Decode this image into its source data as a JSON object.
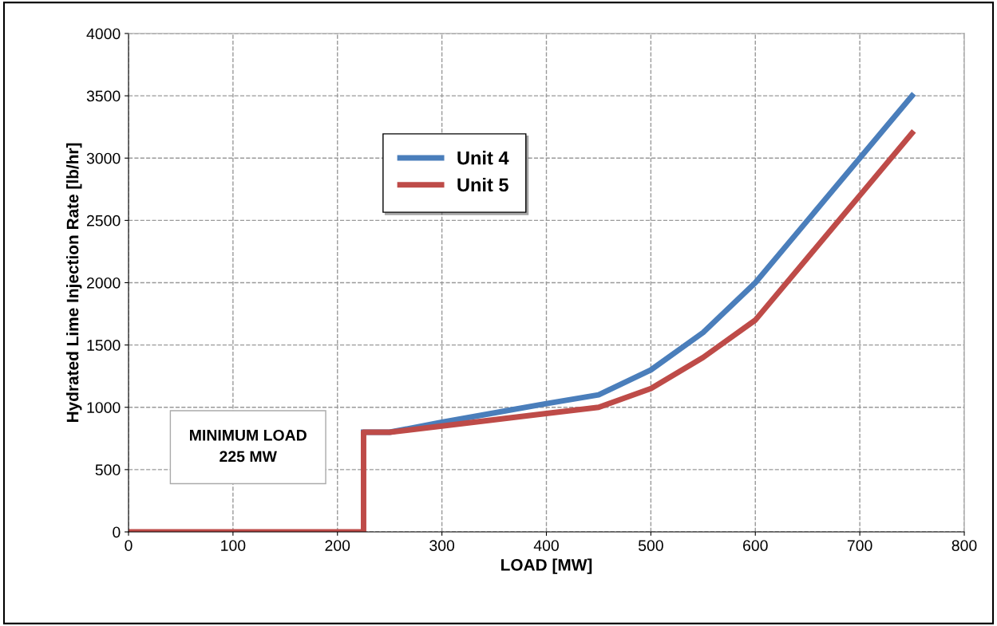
{
  "chart_data": {
    "type": "line",
    "xlabel": "LOAD [MW]",
    "ylabel": "Hydrated Lime Injection Rate [lb/hr]",
    "xlim": [
      0,
      800
    ],
    "xticks": [
      0,
      100,
      200,
      300,
      400,
      500,
      600,
      700,
      800
    ],
    "ylim": [
      0,
      4000
    ],
    "yticks": [
      0,
      500,
      1000,
      1500,
      2000,
      2500,
      3000,
      3500,
      4000
    ],
    "grid": true,
    "legend": "top",
    "marker": "none",
    "line_style": "solid",
    "annotations": [
      "MINIMUM LOAD\n225 MW"
    ],
    "series": [
      {
        "name": "Unit 4",
        "color": "#4a7ebb",
        "x": [
          225,
          250,
          300,
          400,
          450,
          500,
          550,
          600,
          650,
          700,
          750
        ],
        "values": [
          800,
          800,
          880,
          1030,
          1100,
          1300,
          1600,
          2000,
          2500,
          3000,
          3500
        ]
      },
      {
        "name": "Unit 5",
        "color": "#be4b48",
        "x": [
          0,
          225,
          225,
          250,
          300,
          400,
          450,
          500,
          550,
          600,
          650,
          700,
          750
        ],
        "values": [
          0,
          0,
          800,
          800,
          850,
          950,
          1000,
          1150,
          1400,
          1700,
          2200,
          2700,
          3200
        ]
      }
    ]
  }
}
